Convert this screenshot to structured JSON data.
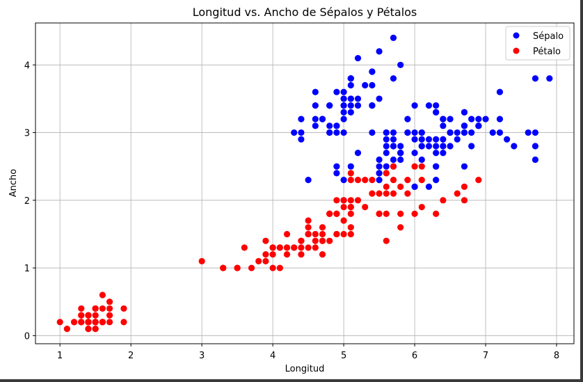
{
  "chart_data": {
    "type": "scatter",
    "title": "Longitud vs. Ancho de Sépalos y Pétalos",
    "xlabel": "Longitud",
    "ylabel": "Ancho",
    "xlim": [
      0.655,
      8.245
    ],
    "ylim": [
      -0.12,
      4.62
    ],
    "xticks": [
      1,
      2,
      3,
      4,
      5,
      6,
      7,
      8
    ],
    "yticks": [
      0,
      1,
      2,
      3,
      4
    ],
    "grid": true,
    "legend_position": "top-right",
    "series": [
      {
        "name": "Sépalo",
        "color": "#0000ff",
        "points": [
          [
            5.1,
            3.5
          ],
          [
            4.9,
            3.0
          ],
          [
            4.7,
            3.2
          ],
          [
            4.6,
            3.1
          ],
          [
            5.0,
            3.6
          ],
          [
            5.4,
            3.9
          ],
          [
            4.6,
            3.4
          ],
          [
            5.0,
            3.4
          ],
          [
            4.4,
            2.9
          ],
          [
            4.9,
            3.1
          ],
          [
            5.4,
            3.7
          ],
          [
            4.8,
            3.4
          ],
          [
            4.8,
            3.0
          ],
          [
            4.3,
            3.0
          ],
          [
            5.8,
            4.0
          ],
          [
            5.7,
            4.4
          ],
          [
            5.4,
            3.9
          ],
          [
            5.1,
            3.5
          ],
          [
            5.7,
            3.8
          ],
          [
            5.1,
            3.8
          ],
          [
            5.4,
            3.4
          ],
          [
            5.1,
            3.7
          ],
          [
            4.6,
            3.6
          ],
          [
            5.1,
            3.3
          ],
          [
            4.8,
            3.4
          ],
          [
            5.0,
            3.0
          ],
          [
            5.0,
            3.4
          ],
          [
            5.2,
            3.5
          ],
          [
            5.2,
            3.4
          ],
          [
            4.7,
            3.2
          ],
          [
            4.8,
            3.1
          ],
          [
            5.4,
            3.4
          ],
          [
            5.2,
            4.1
          ],
          [
            5.5,
            4.2
          ],
          [
            4.9,
            3.1
          ],
          [
            5.0,
            3.2
          ],
          [
            5.5,
            3.5
          ],
          [
            4.9,
            3.6
          ],
          [
            4.4,
            3.0
          ],
          [
            5.1,
            3.4
          ],
          [
            5.0,
            3.5
          ],
          [
            4.5,
            2.3
          ],
          [
            4.4,
            3.2
          ],
          [
            5.0,
            3.5
          ],
          [
            5.1,
            3.8
          ],
          [
            4.8,
            3.0
          ],
          [
            5.1,
            3.8
          ],
          [
            4.6,
            3.2
          ],
          [
            5.3,
            3.7
          ],
          [
            5.0,
            3.3
          ],
          [
            7.0,
            3.2
          ],
          [
            6.4,
            3.2
          ],
          [
            6.9,
            3.1
          ],
          [
            5.5,
            2.3
          ],
          [
            6.5,
            2.8
          ],
          [
            5.7,
            2.8
          ],
          [
            6.3,
            3.3
          ],
          [
            4.9,
            2.4
          ],
          [
            6.6,
            2.9
          ],
          [
            5.2,
            2.7
          ],
          [
            5.0,
            2.0
          ],
          [
            5.9,
            3.0
          ],
          [
            6.0,
            2.2
          ],
          [
            6.1,
            2.9
          ],
          [
            5.6,
            2.9
          ],
          [
            6.7,
            3.1
          ],
          [
            5.6,
            3.0
          ],
          [
            5.8,
            2.7
          ],
          [
            6.2,
            2.2
          ],
          [
            5.6,
            2.5
          ],
          [
            5.9,
            3.2
          ],
          [
            6.1,
            2.8
          ],
          [
            6.3,
            2.5
          ],
          [
            6.1,
            2.8
          ],
          [
            6.4,
            2.9
          ],
          [
            6.6,
            3.0
          ],
          [
            6.8,
            2.8
          ],
          [
            6.7,
            3.0
          ],
          [
            6.0,
            2.9
          ],
          [
            5.7,
            2.6
          ],
          [
            5.5,
            2.4
          ],
          [
            5.5,
            2.4
          ],
          [
            5.8,
            2.7
          ],
          [
            6.0,
            2.7
          ],
          [
            5.4,
            3.0
          ],
          [
            6.0,
            3.4
          ],
          [
            6.7,
            3.1
          ],
          [
            6.3,
            2.3
          ],
          [
            5.6,
            3.0
          ],
          [
            5.5,
            2.5
          ],
          [
            5.5,
            2.6
          ],
          [
            6.1,
            3.0
          ],
          [
            5.8,
            2.6
          ],
          [
            5.0,
            2.3
          ],
          [
            5.6,
            2.7
          ],
          [
            5.7,
            3.0
          ],
          [
            5.7,
            2.9
          ],
          [
            6.2,
            2.9
          ],
          [
            5.1,
            2.5
          ],
          [
            5.7,
            2.8
          ],
          [
            6.3,
            3.3
          ],
          [
            5.8,
            2.7
          ],
          [
            7.1,
            3.0
          ],
          [
            6.3,
            2.9
          ],
          [
            6.5,
            3.0
          ],
          [
            7.6,
            3.0
          ],
          [
            4.9,
            2.5
          ],
          [
            7.3,
            2.9
          ],
          [
            6.7,
            2.5
          ],
          [
            7.2,
            3.6
          ],
          [
            6.5,
            3.2
          ],
          [
            6.4,
            2.7
          ],
          [
            6.8,
            3.0
          ],
          [
            5.7,
            2.5
          ],
          [
            5.8,
            2.8
          ],
          [
            6.4,
            3.2
          ],
          [
            6.5,
            3.0
          ],
          [
            7.7,
            3.8
          ],
          [
            7.7,
            2.6
          ],
          [
            6.0,
            2.2
          ],
          [
            6.9,
            3.2
          ],
          [
            5.6,
            2.8
          ],
          [
            7.7,
            2.8
          ],
          [
            6.3,
            2.7
          ],
          [
            6.7,
            3.3
          ],
          [
            7.2,
            3.2
          ],
          [
            6.2,
            2.8
          ],
          [
            6.1,
            3.0
          ],
          [
            6.4,
            2.8
          ],
          [
            7.2,
            3.0
          ],
          [
            7.4,
            2.8
          ],
          [
            7.9,
            3.8
          ],
          [
            6.4,
            2.8
          ],
          [
            6.3,
            2.8
          ],
          [
            6.1,
            2.6
          ],
          [
            7.7,
            3.0
          ],
          [
            6.3,
            3.4
          ],
          [
            6.4,
            3.1
          ],
          [
            6.0,
            3.0
          ],
          [
            6.9,
            3.1
          ],
          [
            6.7,
            3.1
          ],
          [
            6.9,
            3.1
          ],
          [
            5.8,
            2.7
          ],
          [
            6.8,
            3.2
          ],
          [
            6.7,
            3.3
          ],
          [
            6.7,
            3.0
          ],
          [
            6.3,
            2.5
          ],
          [
            6.5,
            3.0
          ],
          [
            6.2,
            3.4
          ],
          [
            5.9,
            3.0
          ]
        ]
      },
      {
        "name": "Pétalo",
        "color": "#ff0000",
        "points": [
          [
            1.4,
            0.2
          ],
          [
            1.4,
            0.2
          ],
          [
            1.3,
            0.2
          ],
          [
            1.5,
            0.2
          ],
          [
            1.4,
            0.2
          ],
          [
            1.7,
            0.4
          ],
          [
            1.4,
            0.3
          ],
          [
            1.5,
            0.2
          ],
          [
            1.4,
            0.2
          ],
          [
            1.5,
            0.1
          ],
          [
            1.5,
            0.2
          ],
          [
            1.6,
            0.2
          ],
          [
            1.4,
            0.1
          ],
          [
            1.1,
            0.1
          ],
          [
            1.2,
            0.2
          ],
          [
            1.5,
            0.4
          ],
          [
            1.3,
            0.4
          ],
          [
            1.4,
            0.3
          ],
          [
            1.7,
            0.3
          ],
          [
            1.5,
            0.3
          ],
          [
            1.7,
            0.2
          ],
          [
            1.5,
            0.4
          ],
          [
            1.0,
            0.2
          ],
          [
            1.7,
            0.5
          ],
          [
            1.9,
            0.2
          ],
          [
            1.6,
            0.2
          ],
          [
            1.6,
            0.4
          ],
          [
            1.5,
            0.2
          ],
          [
            1.4,
            0.2
          ],
          [
            1.6,
            0.2
          ],
          [
            1.6,
            0.2
          ],
          [
            1.5,
            0.4
          ],
          [
            1.5,
            0.1
          ],
          [
            1.4,
            0.2
          ],
          [
            1.5,
            0.2
          ],
          [
            1.2,
            0.2
          ],
          [
            1.3,
            0.2
          ],
          [
            1.4,
            0.1
          ],
          [
            1.3,
            0.2
          ],
          [
            1.5,
            0.2
          ],
          [
            1.3,
            0.3
          ],
          [
            1.3,
            0.3
          ],
          [
            1.3,
            0.2
          ],
          [
            1.6,
            0.6
          ],
          [
            1.9,
            0.4
          ],
          [
            1.4,
            0.3
          ],
          [
            1.6,
            0.2
          ],
          [
            1.4,
            0.2
          ],
          [
            1.5,
            0.2
          ],
          [
            1.4,
            0.2
          ],
          [
            4.7,
            1.4
          ],
          [
            4.5,
            1.5
          ],
          [
            4.9,
            1.5
          ],
          [
            4.0,
            1.3
          ],
          [
            4.6,
            1.5
          ],
          [
            4.5,
            1.3
          ],
          [
            4.7,
            1.6
          ],
          [
            3.3,
            1.0
          ],
          [
            4.6,
            1.3
          ],
          [
            3.9,
            1.4
          ],
          [
            3.5,
            1.0
          ],
          [
            4.2,
            1.5
          ],
          [
            4.0,
            1.0
          ],
          [
            4.7,
            1.4
          ],
          [
            3.6,
            1.3
          ],
          [
            4.4,
            1.4
          ],
          [
            4.5,
            1.5
          ],
          [
            4.1,
            1.0
          ],
          [
            4.5,
            1.5
          ],
          [
            3.9,
            1.1
          ],
          [
            4.8,
            1.8
          ],
          [
            4.0,
            1.3
          ],
          [
            4.9,
            1.5
          ],
          [
            4.7,
            1.2
          ],
          [
            4.3,
            1.3
          ],
          [
            4.4,
            1.4
          ],
          [
            4.8,
            1.4
          ],
          [
            5.0,
            1.7
          ],
          [
            4.5,
            1.5
          ],
          [
            3.5,
            1.0
          ],
          [
            3.8,
            1.1
          ],
          [
            3.7,
            1.0
          ],
          [
            3.9,
            1.2
          ],
          [
            5.1,
            1.6
          ],
          [
            4.5,
            1.5
          ],
          [
            4.5,
            1.6
          ],
          [
            4.7,
            1.5
          ],
          [
            4.4,
            1.3
          ],
          [
            4.1,
            1.3
          ],
          [
            4.0,
            1.3
          ],
          [
            4.4,
            1.2
          ],
          [
            4.6,
            1.4
          ],
          [
            4.0,
            1.2
          ],
          [
            3.3,
            1.0
          ],
          [
            4.2,
            1.3
          ],
          [
            4.2,
            1.2
          ],
          [
            4.2,
            1.3
          ],
          [
            4.3,
            1.3
          ],
          [
            3.0,
            1.1
          ],
          [
            4.1,
            1.3
          ],
          [
            6.0,
            2.5
          ],
          [
            5.1,
            1.9
          ],
          [
            5.9,
            2.1
          ],
          [
            5.6,
            1.8
          ],
          [
            5.8,
            2.2
          ],
          [
            6.6,
            2.1
          ],
          [
            4.5,
            1.7
          ],
          [
            6.3,
            1.8
          ],
          [
            5.8,
            1.8
          ],
          [
            6.1,
            2.5
          ],
          [
            5.1,
            2.0
          ],
          [
            5.3,
            1.9
          ],
          [
            5.5,
            2.1
          ],
          [
            5.0,
            2.0
          ],
          [
            5.1,
            2.4
          ],
          [
            5.3,
            2.3
          ],
          [
            5.5,
            1.8
          ],
          [
            6.7,
            2.2
          ],
          [
            6.9,
            2.3
          ],
          [
            5.0,
            1.5
          ],
          [
            5.7,
            2.3
          ],
          [
            4.9,
            2.0
          ],
          [
            6.7,
            2.0
          ],
          [
            4.9,
            1.8
          ],
          [
            5.7,
            2.1
          ],
          [
            6.0,
            1.8
          ],
          [
            4.8,
            1.8
          ],
          [
            4.9,
            1.8
          ],
          [
            5.6,
            2.1
          ],
          [
            5.8,
            1.6
          ],
          [
            6.1,
            1.9
          ],
          [
            6.4,
            2.0
          ],
          [
            5.6,
            2.2
          ],
          [
            5.1,
            1.5
          ],
          [
            5.6,
            1.4
          ],
          [
            6.1,
            2.3
          ],
          [
            5.6,
            2.4
          ],
          [
            5.5,
            1.8
          ],
          [
            4.8,
            1.8
          ],
          [
            5.4,
            2.1
          ],
          [
            5.6,
            2.4
          ],
          [
            5.1,
            2.3
          ],
          [
            5.1,
            1.9
          ],
          [
            5.9,
            2.3
          ],
          [
            5.7,
            2.5
          ],
          [
            5.2,
            2.3
          ],
          [
            5.0,
            1.9
          ],
          [
            5.2,
            2.0
          ],
          [
            5.4,
            2.3
          ],
          [
            5.1,
            1.8
          ]
        ]
      }
    ]
  }
}
